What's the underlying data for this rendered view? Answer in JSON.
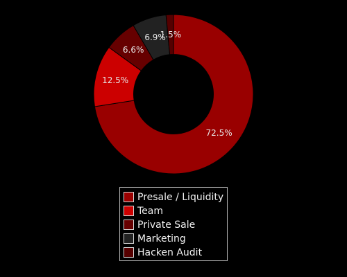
{
  "chart_data": {
    "type": "pie",
    "title": "",
    "hole": 0.5,
    "slices": [
      {
        "name": "Presale / Liquidity",
        "value": 72.5,
        "label": "72.5%",
        "color": "#990000"
      },
      {
        "name": "Team",
        "value": 12.5,
        "label": "12.5%",
        "color": "#cc0000"
      },
      {
        "name": "Private Sale",
        "value": 6.6,
        "label": "6.6%",
        "color": "#660000"
      },
      {
        "name": "Marketing",
        "value": 6.9,
        "label": "6.9%",
        "color": "#222222"
      },
      {
        "name": "Hacken Audit",
        "value": 1.5,
        "label": "1.5%",
        "color": "#550000"
      }
    ],
    "legend_position": "bottom"
  }
}
